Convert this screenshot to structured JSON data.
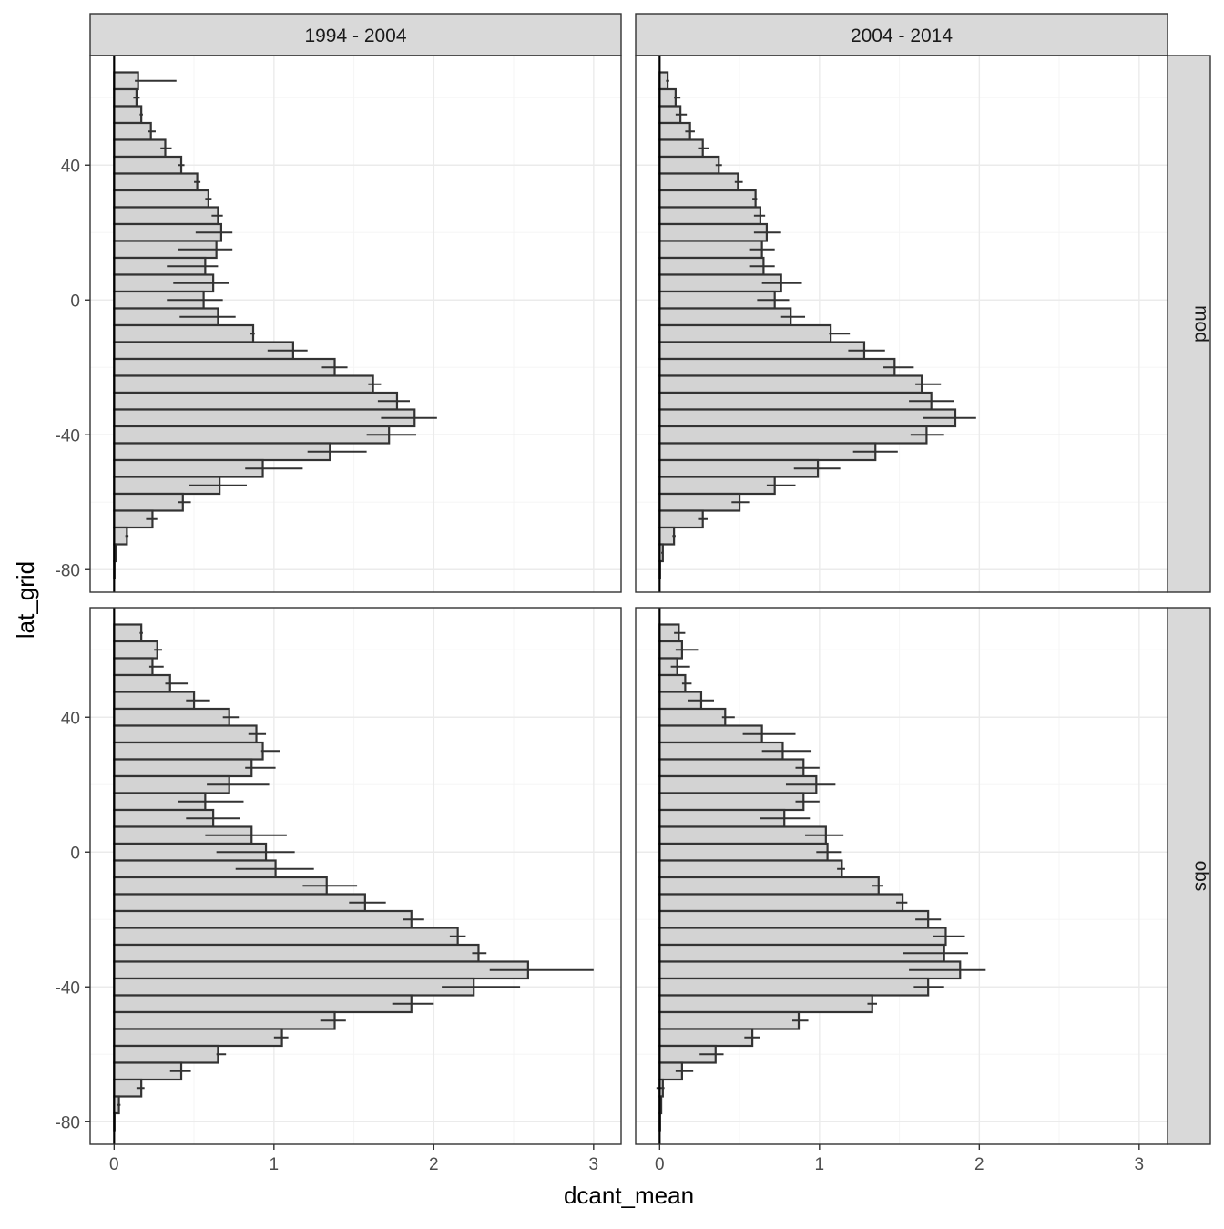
{
  "chart_data": {
    "type": "bar",
    "orientation": "horizontal",
    "xlabel": "dcant_mean",
    "ylabel": "lat_grid",
    "xlim": [
      -0.15,
      3.15
    ],
    "ylim": [
      -87.5,
      72.5
    ],
    "x_ticks": [
      0,
      1,
      2,
      3
    ],
    "y_ticks": [
      -80,
      -40,
      0,
      40
    ],
    "grid": true,
    "bar_color": "#d3d3d3",
    "bar_outline": "#333333",
    "col_facets": [
      "1994 - 2004",
      "2004 - 2014"
    ],
    "row_facets": [
      "mod",
      "obs"
    ],
    "lat": [
      65,
      60,
      55,
      50,
      45,
      40,
      35,
      30,
      25,
      20,
      15,
      10,
      5,
      0,
      -5,
      -10,
      -15,
      -20,
      -25,
      -30,
      -35,
      -40,
      -45,
      -50,
      -55,
      -60,
      -65,
      -70,
      -75,
      -80
    ],
    "panels": [
      {
        "column": "1994 - 2004",
        "row": "mod",
        "values": [
          0.15,
          0.14,
          0.17,
          0.23,
          0.32,
          0.42,
          0.52,
          0.59,
          0.65,
          0.67,
          0.64,
          0.57,
          0.62,
          0.56,
          0.65,
          0.87,
          1.12,
          1.38,
          1.62,
          1.77,
          1.88,
          1.72,
          1.35,
          0.93,
          0.66,
          0.43,
          0.24,
          0.08,
          0.01,
          0.0
        ],
        "err_lo": [
          0.13,
          0.12,
          0.16,
          0.21,
          0.29,
          0.4,
          0.5,
          0.57,
          0.61,
          0.51,
          0.4,
          0.33,
          0.37,
          0.33,
          0.41,
          0.85,
          0.96,
          1.3,
          1.59,
          1.65,
          1.67,
          1.58,
          1.21,
          0.82,
          0.47,
          0.4,
          0.2,
          0.07,
          0.0,
          0.0
        ],
        "err_hi": [
          0.39,
          0.16,
          0.18,
          0.26,
          0.36,
          0.44,
          0.54,
          0.61,
          0.68,
          0.74,
          0.74,
          0.65,
          0.72,
          0.68,
          0.76,
          0.88,
          1.21,
          1.46,
          1.67,
          1.85,
          2.02,
          1.89,
          1.58,
          1.18,
          0.83,
          0.48,
          0.27,
          0.09,
          0.01,
          0.0
        ]
      },
      {
        "column": "2004 - 2014",
        "row": "mod",
        "values": [
          0.05,
          0.1,
          0.13,
          0.19,
          0.27,
          0.37,
          0.49,
          0.6,
          0.63,
          0.67,
          0.64,
          0.65,
          0.76,
          0.72,
          0.82,
          1.07,
          1.28,
          1.47,
          1.64,
          1.7,
          1.85,
          1.67,
          1.35,
          0.99,
          0.72,
          0.5,
          0.27,
          0.09,
          0.02,
          0.0
        ],
        "err_lo": [
          0.04,
          0.09,
          0.1,
          0.16,
          0.24,
          0.35,
          0.47,
          0.58,
          0.59,
          0.59,
          0.56,
          0.56,
          0.64,
          0.61,
          0.76,
          1.06,
          1.18,
          1.4,
          1.6,
          1.56,
          1.65,
          1.57,
          1.21,
          0.84,
          0.67,
          0.45,
          0.24,
          0.08,
          0.01,
          0.0
        ],
        "err_hi": [
          0.06,
          0.13,
          0.17,
          0.22,
          0.31,
          0.39,
          0.52,
          0.61,
          0.66,
          0.76,
          0.72,
          0.72,
          0.89,
          0.81,
          0.91,
          1.19,
          1.41,
          1.59,
          1.76,
          1.84,
          1.98,
          1.78,
          1.49,
          1.13,
          0.85,
          0.56,
          0.3,
          0.1,
          0.02,
          0.0
        ]
      },
      {
        "column": "1994 - 2004",
        "row": "obs",
        "values": [
          0.17,
          0.27,
          0.24,
          0.35,
          0.5,
          0.72,
          0.89,
          0.93,
          0.86,
          0.72,
          0.57,
          0.62,
          0.86,
          0.95,
          1.01,
          1.33,
          1.57,
          1.86,
          2.15,
          2.28,
          2.59,
          2.25,
          1.86,
          1.38,
          1.05,
          0.65,
          0.42,
          0.17,
          0.03,
          0.0
        ],
        "err_lo": [
          0.16,
          0.25,
          0.22,
          0.32,
          0.45,
          0.68,
          0.84,
          0.92,
          0.82,
          0.58,
          0.4,
          0.45,
          0.57,
          0.64,
          0.76,
          1.18,
          1.47,
          1.81,
          2.1,
          2.24,
          2.35,
          2.05,
          1.74,
          1.29,
          1.0,
          0.64,
          0.35,
          0.14,
          0.02,
          0.0
        ],
        "err_hi": [
          0.18,
          0.3,
          0.31,
          0.46,
          0.6,
          0.78,
          0.95,
          1.04,
          1.01,
          0.97,
          0.81,
          0.79,
          1.08,
          1.13,
          1.25,
          1.52,
          1.7,
          1.94,
          2.2,
          2.33,
          3.0,
          2.54,
          2.0,
          1.45,
          1.09,
          0.7,
          0.48,
          0.19,
          0.04,
          0.0
        ]
      },
      {
        "column": "2004 - 2014",
        "row": "obs",
        "values": [
          0.12,
          0.14,
          0.11,
          0.16,
          0.26,
          0.41,
          0.64,
          0.77,
          0.9,
          0.98,
          0.9,
          0.78,
          1.04,
          1.05,
          1.14,
          1.37,
          1.52,
          1.68,
          1.79,
          1.78,
          1.88,
          1.68,
          1.33,
          0.87,
          0.58,
          0.35,
          0.14,
          0.02,
          0.01,
          0.0
        ],
        "err_lo": [
          0.09,
          0.1,
          0.07,
          0.14,
          0.18,
          0.39,
          0.52,
          0.64,
          0.85,
          0.79,
          0.85,
          0.63,
          0.91,
          0.98,
          1.11,
          1.33,
          1.48,
          1.6,
          1.71,
          1.52,
          1.56,
          1.59,
          1.3,
          0.83,
          0.53,
          0.25,
          0.1,
          -0.02,
          0.0,
          0.0
        ],
        "err_hi": [
          0.16,
          0.24,
          0.19,
          0.2,
          0.34,
          0.47,
          0.85,
          0.95,
          1.0,
          1.1,
          1.0,
          0.94,
          1.15,
          1.14,
          1.16,
          1.4,
          1.55,
          1.76,
          1.91,
          1.93,
          2.04,
          1.78,
          1.36,
          0.93,
          0.63,
          0.4,
          0.21,
          0.03,
          0.01,
          0.0
        ]
      }
    ]
  }
}
